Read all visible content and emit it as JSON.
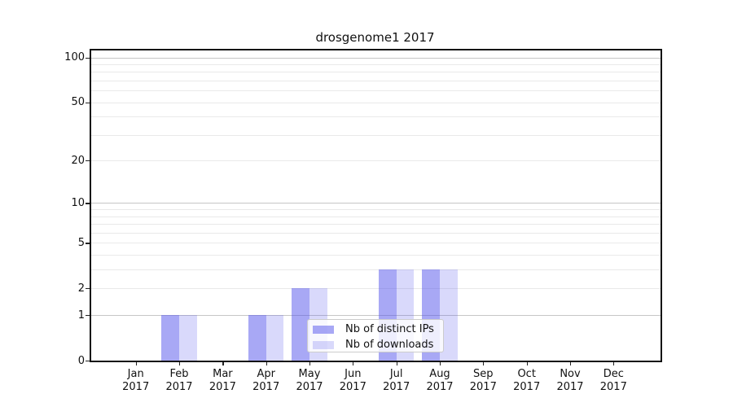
{
  "title": "drosgenome1 2017",
  "colors": {
    "background": "#ffffff",
    "bar_distinct_ips": "rgba(82,82,236,0.50)",
    "bar_downloads": "rgba(82,82,236,0.22)",
    "grid_major": "#c6c6c6",
    "grid_minor": "#e9e9e9",
    "axis": "#111111"
  },
  "legend": {
    "items": [
      {
        "label": "Nb of distinct IPs"
      },
      {
        "label": "Nb of downloads"
      }
    ]
  },
  "chart_data": {
    "type": "bar",
    "title": "drosgenome1 2017",
    "categories": [
      "Jan 2017",
      "Feb 2017",
      "Mar 2017",
      "Apr 2017",
      "May 2017",
      "Jun 2017",
      "Jul 2017",
      "Aug 2017",
      "Sep 2017",
      "Oct 2017",
      "Nov 2017",
      "Dec 2017"
    ],
    "series": [
      {
        "name": "Nb of distinct IPs",
        "color": "rgba(82,82,236,0.50)",
        "values": [
          0,
          1,
          0,
          1,
          2,
          0,
          3,
          3,
          0,
          0,
          0,
          0
        ]
      },
      {
        "name": "Nb of downloads",
        "color": "rgba(82,82,236,0.22)",
        "values": [
          0,
          1,
          0,
          1,
          2,
          0,
          3,
          3,
          0,
          0,
          0,
          0
        ]
      }
    ],
    "xlabel": "",
    "ylabel": "",
    "yscale": "log1p",
    "ylim": [
      0,
      114
    ],
    "y_major_ticks": [
      0,
      1,
      2,
      5,
      10,
      20,
      50,
      100
    ],
    "grid_major_lines": [
      1,
      10,
      100
    ],
    "grid_minor_lines": [
      2,
      3,
      4,
      5,
      6,
      7,
      8,
      9,
      20,
      30,
      40,
      50,
      60,
      70,
      80,
      90
    ],
    "grid": "on",
    "legend_position": "inside-lower-center"
  }
}
